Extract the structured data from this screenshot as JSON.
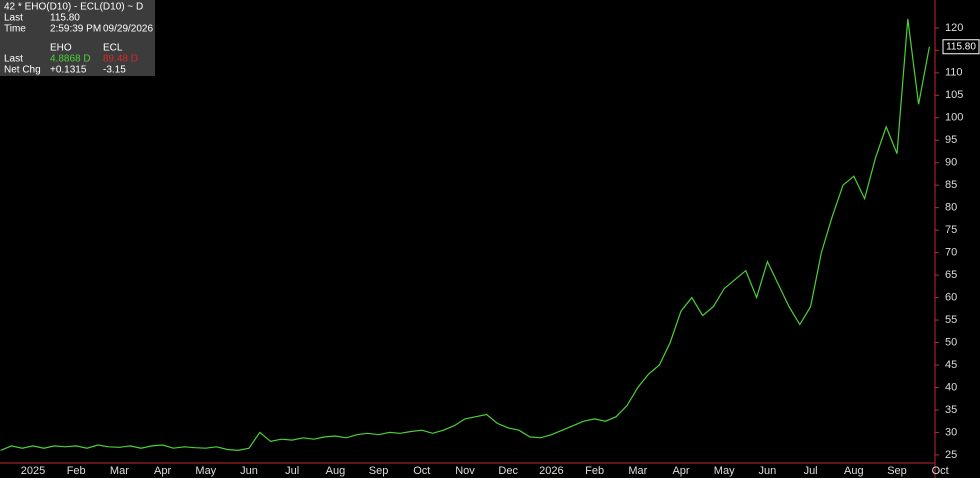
{
  "info": {
    "title": "42 * EHO(D10) - ECL(D10) ~ D",
    "rows": [
      [
        "Last",
        "115.80"
      ],
      [
        "Time",
        "2:59:39 PM",
        "09/29/2026"
      ]
    ],
    "columns": [
      "EHO",
      "ECL"
    ],
    "table": [
      [
        "Last",
        "4.8868 D",
        "89.48 D"
      ],
      [
        "Net Chg",
        "+0.1315",
        "-3.15"
      ]
    ]
  },
  "chart_data": {
    "type": "line",
    "color": "#4cd137",
    "categories": [
      null,
      null,
      null,
      "2025",
      null,
      null,
      null,
      "Feb",
      null,
      null,
      null,
      "Mar",
      null,
      null,
      null,
      "Apr",
      null,
      null,
      null,
      "May",
      null,
      null,
      null,
      "Jun",
      null,
      null,
      null,
      "Jul",
      null,
      null,
      null,
      "Aug",
      null,
      null,
      null,
      "Sep",
      null,
      null,
      null,
      "Oct",
      null,
      null,
      null,
      "Nov",
      null,
      null,
      null,
      "Dec",
      null,
      null,
      null,
      "2026",
      null,
      null,
      null,
      "Feb",
      null,
      null,
      null,
      "Mar",
      null,
      null,
      null,
      "Apr",
      null,
      null,
      null,
      "May",
      null,
      null,
      null,
      "Jun",
      null,
      null,
      null,
      "Jul",
      null,
      null,
      null,
      "Aug",
      null,
      null,
      null,
      "Sep",
      null,
      null,
      null,
      "Oct"
    ],
    "values": [
      26,
      27,
      26.5,
      27,
      26.5,
      27,
      26.8,
      27,
      26.5,
      27.2,
      26.8,
      26.7,
      27,
      26.5,
      27,
      27.2,
      26.5,
      26.8,
      26.6,
      26.5,
      26.8,
      26.2,
      26,
      26.5,
      30,
      28,
      28.5,
      28.3,
      28.8,
      28.5,
      29,
      29.2,
      28.8,
      29.5,
      29.8,
      29.5,
      30,
      29.8,
      30.2,
      30.5,
      29.8,
      30.5,
      31.5,
      33,
      33.5,
      34,
      32,
      31,
      30.5,
      29,
      28.8,
      29.5,
      30.5,
      31.5,
      32.5,
      33,
      32.5,
      33.5,
      36,
      40,
      43,
      45,
      50,
      57,
      60,
      56,
      58,
      62,
      64,
      66,
      60,
      68,
      63,
      58,
      54,
      58,
      70,
      78,
      85,
      87,
      82,
      91,
      98,
      92,
      122,
      103,
      115.8,
      null
    ],
    "ylim": [
      23.2,
      126.2
    ],
    "yticks": [
      25,
      30,
      35,
      40,
      45,
      50,
      55,
      60,
      65,
      70,
      75,
      80,
      85,
      90,
      95,
      100,
      105,
      110,
      115,
      120
    ]
  }
}
